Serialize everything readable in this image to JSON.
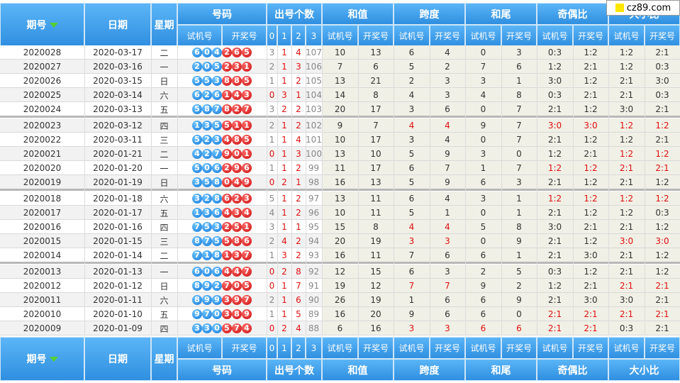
{
  "brand": "cz89.com",
  "header": {
    "period": "期号",
    "date": "日期",
    "weekday": "星期",
    "number": "号码",
    "count": "出号个数",
    "sum": "和值",
    "span": "跨度",
    "tail": "和尾",
    "odd_even": "奇偶比",
    "big_small": "大小比",
    "trial": "试机号",
    "draw": "开奖号",
    "count_cols": [
      "0",
      "1",
      "2",
      "3"
    ]
  },
  "rows": [
    {
      "period": "2020028",
      "date": "2020-03-17",
      "week": "二",
      "trial": [
        "6",
        "0",
        "4"
      ],
      "draw": [
        "2",
        "6",
        "5"
      ],
      "c": [
        "3",
        "1",
        "4",
        "107"
      ],
      "sum": [
        "10",
        "13"
      ],
      "span": [
        "6",
        "4"
      ],
      "tail": [
        "0",
        "3"
      ],
      "oe": [
        "0:3",
        "1:2"
      ],
      "bs": [
        "1:2",
        "2:1"
      ],
      "red": []
    },
    {
      "period": "2020027",
      "date": "2020-03-16",
      "week": "一",
      "trial": [
        "2",
        "0",
        "5"
      ],
      "draw": [
        "2",
        "3",
        "1"
      ],
      "c": [
        "2",
        "1",
        "3",
        "106"
      ],
      "sum": [
        "7",
        "6"
      ],
      "span": [
        "5",
        "2"
      ],
      "tail": [
        "7",
        "6"
      ],
      "oe": [
        "1:2",
        "2:1"
      ],
      "bs": [
        "1:2",
        "0:3"
      ],
      "red": []
    },
    {
      "period": "2020026",
      "date": "2020-03-15",
      "week": "日",
      "trial": [
        "5",
        "5",
        "3"
      ],
      "draw": [
        "8",
        "8",
        "5"
      ],
      "c": [
        "1",
        "1",
        "2",
        "105"
      ],
      "sum": [
        "13",
        "21"
      ],
      "span": [
        "2",
        "3"
      ],
      "tail": [
        "3",
        "1"
      ],
      "oe": [
        "3:0",
        "1:2"
      ],
      "bs": [
        "2:1",
        "3:0"
      ],
      "red": []
    },
    {
      "period": "2020025",
      "date": "2020-03-14",
      "week": "六",
      "trial": [
        "6",
        "2",
        "6"
      ],
      "draw": [
        "1",
        "4",
        "3"
      ],
      "c": [
        "0",
        "3",
        "1",
        "104"
      ],
      "sum": [
        "14",
        "8"
      ],
      "span": [
        "4",
        "3"
      ],
      "tail": [
        "4",
        "8"
      ],
      "oe": [
        "0:3",
        "2:1"
      ],
      "bs": [
        "2:1",
        "0:3"
      ],
      "red": []
    },
    {
      "period": "2020024",
      "date": "2020-03-13",
      "week": "五",
      "trial": [
        "5",
        "8",
        "7"
      ],
      "draw": [
        "8",
        "2",
        "7"
      ],
      "c": [
        "3",
        "2",
        "2",
        "103"
      ],
      "sum": [
        "20",
        "17"
      ],
      "span": [
        "3",
        "6"
      ],
      "tail": [
        "0",
        "7"
      ],
      "oe": [
        "2:1",
        "1:2"
      ],
      "bs": [
        "3:0",
        "2:1"
      ],
      "red": []
    },
    {
      "period": "2020023",
      "date": "2020-03-12",
      "week": "四",
      "trial": [
        "1",
        "3",
        "5"
      ],
      "draw": [
        "5",
        "1",
        "1"
      ],
      "c": [
        "2",
        "1",
        "2",
        "102"
      ],
      "sum": [
        "9",
        "7"
      ],
      "span": [
        "4",
        "4"
      ],
      "tail": [
        "9",
        "7"
      ],
      "oe": [
        "3:0",
        "3:0"
      ],
      "bs": [
        "1:2",
        "1:2"
      ],
      "red": [
        "span",
        "oe",
        "bs"
      ]
    },
    {
      "period": "2020022",
      "date": "2020-03-11",
      "week": "三",
      "trial": [
        "5",
        "2",
        "3"
      ],
      "draw": [
        "4",
        "8",
        "5"
      ],
      "c": [
        "1",
        "1",
        "4",
        "101"
      ],
      "sum": [
        "10",
        "17"
      ],
      "span": [
        "3",
        "4"
      ],
      "tail": [
        "0",
        "7"
      ],
      "oe": [
        "2:1",
        "1:2"
      ],
      "bs": [
        "1:2",
        "2:1"
      ],
      "red": []
    },
    {
      "period": "2020021",
      "date": "2020-01-21",
      "week": "二",
      "trial": [
        "4",
        "2",
        "7"
      ],
      "draw": [
        "9",
        "0",
        "1"
      ],
      "c": [
        "0",
        "1",
        "3",
        "100"
      ],
      "sum": [
        "13",
        "10"
      ],
      "span": [
        "5",
        "9"
      ],
      "tail": [
        "3",
        "0"
      ],
      "oe": [
        "1:2",
        "2:1"
      ],
      "bs": [
        "1:2",
        "1:2"
      ],
      "red": [
        "bs"
      ]
    },
    {
      "period": "2020020",
      "date": "2020-01-20",
      "week": "一",
      "trial": [
        "5",
        "0",
        "6"
      ],
      "draw": [
        "2",
        "9",
        "6"
      ],
      "c": [
        "1",
        "1",
        "2",
        "99"
      ],
      "sum": [
        "11",
        "17"
      ],
      "span": [
        "6",
        "7"
      ],
      "tail": [
        "1",
        "7"
      ],
      "oe": [
        "1:2",
        "1:2"
      ],
      "bs": [
        "2:1",
        "2:1"
      ],
      "red": [
        "oe",
        "bs"
      ]
    },
    {
      "period": "2020019",
      "date": "2020-01-19",
      "week": "日",
      "trial": [
        "3",
        "5",
        "8"
      ],
      "draw": [
        "0",
        "4",
        "9"
      ],
      "c": [
        "0",
        "2",
        "1",
        "98"
      ],
      "sum": [
        "16",
        "13"
      ],
      "span": [
        "5",
        "9"
      ],
      "tail": [
        "6",
        "3"
      ],
      "oe": [
        "2:1",
        "1:2"
      ],
      "bs": [
        "2:1",
        "1:2"
      ],
      "red": []
    },
    {
      "period": "2020018",
      "date": "2020-01-18",
      "week": "六",
      "trial": [
        "3",
        "2",
        "8"
      ],
      "draw": [
        "6",
        "2",
        "3"
      ],
      "c": [
        "5",
        "1",
        "2",
        "97"
      ],
      "sum": [
        "13",
        "11"
      ],
      "span": [
        "6",
        "4"
      ],
      "tail": [
        "3",
        "1"
      ],
      "oe": [
        "1:2",
        "1:2"
      ],
      "bs": [
        "1:2",
        "1:2"
      ],
      "red": [
        "oe",
        "bs"
      ]
    },
    {
      "period": "2020017",
      "date": "2020-01-17",
      "week": "五",
      "trial": [
        "1",
        "3",
        "6"
      ],
      "draw": [
        "4",
        "3",
        "4"
      ],
      "c": [
        "4",
        "1",
        "2",
        "96"
      ],
      "sum": [
        "10",
        "11"
      ],
      "span": [
        "5",
        "1"
      ],
      "tail": [
        "0",
        "1"
      ],
      "oe": [
        "2:1",
        "1:2"
      ],
      "bs": [
        "1:2",
        "0:3"
      ],
      "red": []
    },
    {
      "period": "2020016",
      "date": "2020-01-16",
      "week": "四",
      "trial": [
        "7",
        "5",
        "3"
      ],
      "draw": [
        "2",
        "5",
        "1"
      ],
      "c": [
        "3",
        "1",
        "1",
        "95"
      ],
      "sum": [
        "15",
        "8"
      ],
      "span": [
        "4",
        "4"
      ],
      "tail": [
        "5",
        "8"
      ],
      "oe": [
        "3:0",
        "2:1"
      ],
      "bs": [
        "2:1",
        "1:2"
      ],
      "red": [
        "span"
      ]
    },
    {
      "period": "2020015",
      "date": "2020-01-15",
      "week": "三",
      "trial": [
        "8",
        "7",
        "5"
      ],
      "draw": [
        "5",
        "8",
        "6"
      ],
      "c": [
        "2",
        "4",
        "2",
        "94"
      ],
      "sum": [
        "20",
        "19"
      ],
      "span": [
        "3",
        "3"
      ],
      "tail": [
        "0",
        "9"
      ],
      "oe": [
        "2:1",
        "1:2"
      ],
      "bs": [
        "3:0",
        "3:0"
      ],
      "red": [
        "span",
        "bs"
      ]
    },
    {
      "period": "2020014",
      "date": "2020-01-14",
      "week": "二",
      "trial": [
        "7",
        "1",
        "8"
      ],
      "draw": [
        "1",
        "3",
        "7"
      ],
      "c": [
        "1",
        "3",
        "2",
        "93"
      ],
      "sum": [
        "16",
        "11"
      ],
      "span": [
        "7",
        "6"
      ],
      "tail": [
        "6",
        "1"
      ],
      "oe": [
        "2:1",
        "3:0"
      ],
      "bs": [
        "2:1",
        "1:2"
      ],
      "red": []
    },
    {
      "period": "2020013",
      "date": "2020-01-13",
      "week": "一",
      "trial": [
        "6",
        "0",
        "6"
      ],
      "draw": [
        "4",
        "4",
        "7"
      ],
      "c": [
        "0",
        "2",
        "8",
        "92"
      ],
      "sum": [
        "12",
        "15"
      ],
      "span": [
        "6",
        "3"
      ],
      "tail": [
        "2",
        "5"
      ],
      "oe": [
        "0:3",
        "1:2"
      ],
      "bs": [
        "2:1",
        "1:2"
      ],
      "red": []
    },
    {
      "period": "2020012",
      "date": "2020-01-12",
      "week": "日",
      "trial": [
        "8",
        "9",
        "2"
      ],
      "draw": [
        "7",
        "0",
        "5"
      ],
      "c": [
        "0",
        "1",
        "7",
        "91"
      ],
      "sum": [
        "19",
        "12"
      ],
      "span": [
        "7",
        "7"
      ],
      "tail": [
        "9",
        "2"
      ],
      "oe": [
        "1:2",
        "2:1"
      ],
      "bs": [
        "2:1",
        "2:1"
      ],
      "red": [
        "span",
        "bs"
      ]
    },
    {
      "period": "2020011",
      "date": "2020-01-11",
      "week": "六",
      "trial": [
        "8",
        "9",
        "9"
      ],
      "draw": [
        "3",
        "9",
        "7"
      ],
      "c": [
        "2",
        "1",
        "6",
        "90"
      ],
      "sum": [
        "26",
        "19"
      ],
      "span": [
        "1",
        "6"
      ],
      "tail": [
        "6",
        "9"
      ],
      "oe": [
        "2:1",
        "3:0"
      ],
      "bs": [
        "3:0",
        "2:1"
      ],
      "red": []
    },
    {
      "period": "2020010",
      "date": "2020-01-10",
      "week": "五",
      "trial": [
        "9",
        "7",
        "0"
      ],
      "draw": [
        "3",
        "8",
        "9"
      ],
      "c": [
        "1",
        "1",
        "5",
        "89"
      ],
      "sum": [
        "16",
        "20"
      ],
      "span": [
        "9",
        "6"
      ],
      "tail": [
        "6",
        "0"
      ],
      "oe": [
        "2:1",
        "2:1"
      ],
      "bs": [
        "2:1",
        "2:1"
      ],
      "red": [
        "oe",
        "bs"
      ]
    },
    {
      "period": "2020009",
      "date": "2020-01-09",
      "week": "四",
      "trial": [
        "3",
        "3",
        "0"
      ],
      "draw": [
        "5",
        "7",
        "4"
      ],
      "c": [
        "0",
        "2",
        "4",
        "88"
      ],
      "sum": [
        "6",
        "16"
      ],
      "span": [
        "3",
        "3"
      ],
      "tail": [
        "6",
        "6"
      ],
      "oe": [
        "2:1",
        "2:1"
      ],
      "bs": [
        "0:3",
        "2:1"
      ],
      "red": [
        "span",
        "tail",
        "oe"
      ]
    }
  ]
}
